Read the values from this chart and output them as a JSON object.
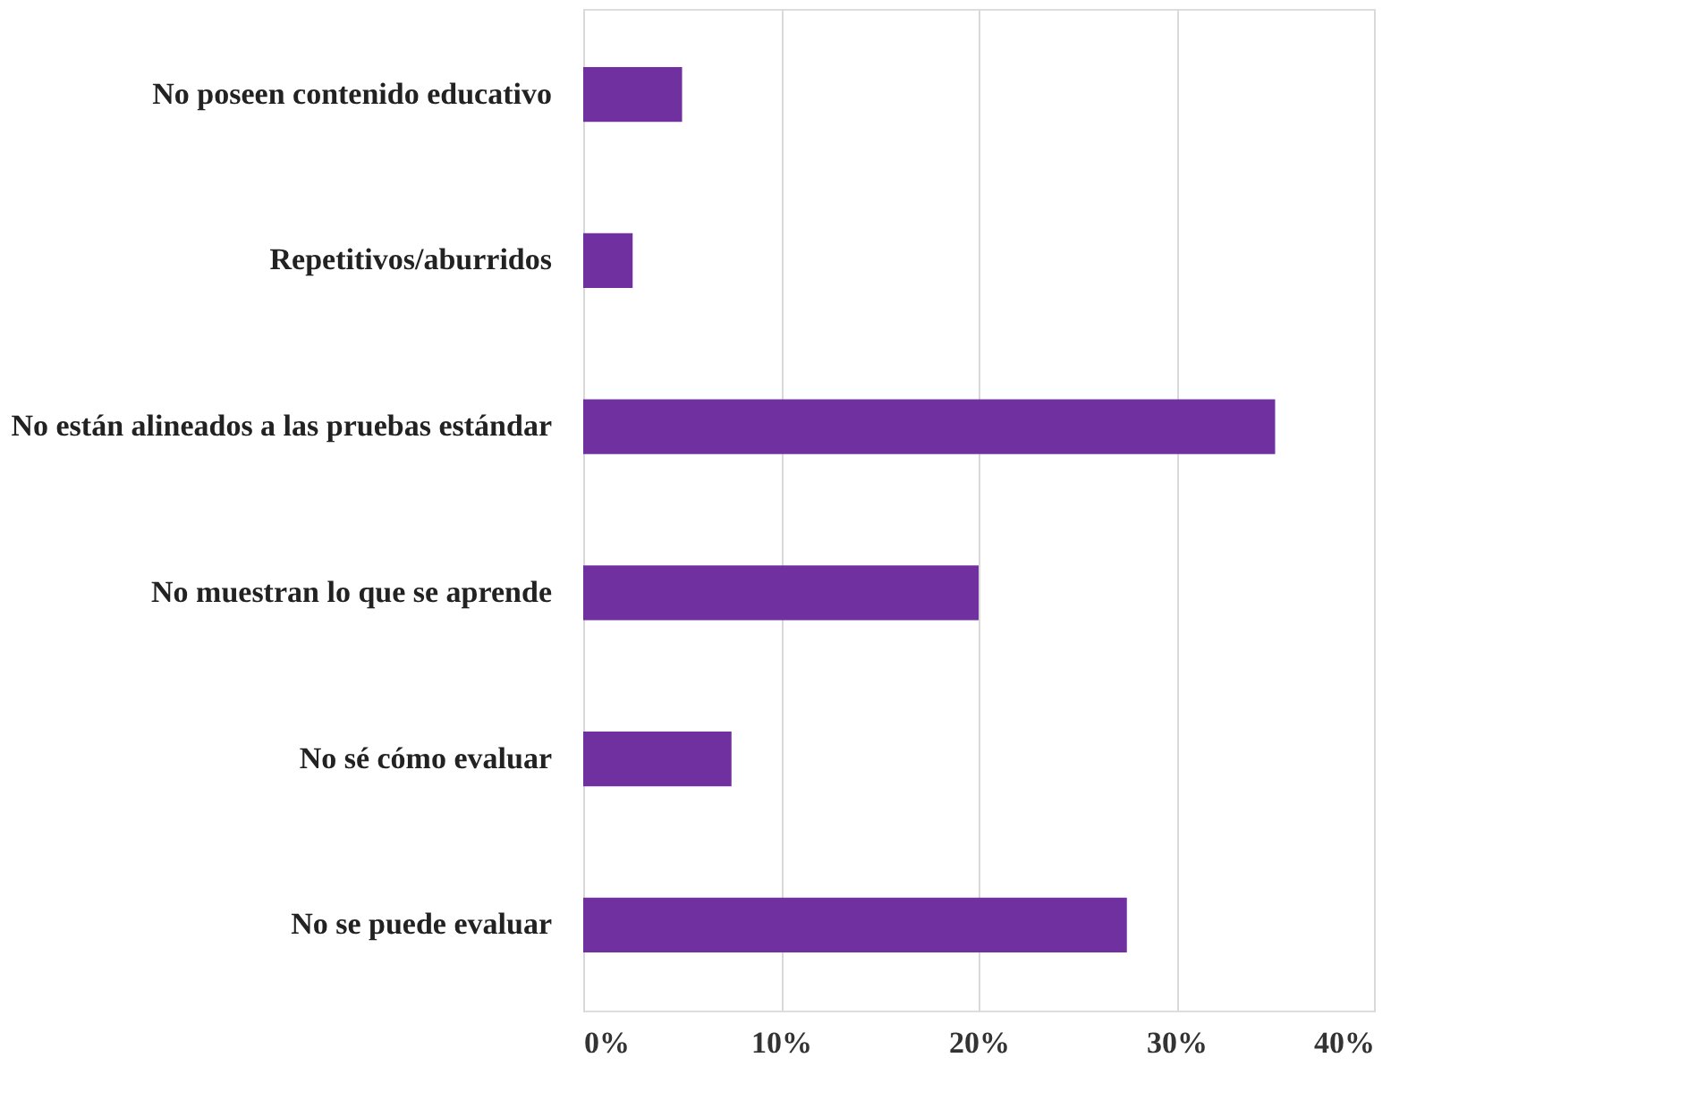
{
  "chart_data": {
    "type": "bar",
    "orientation": "horizontal",
    "categories": [
      "No poseen contenido educativo",
      "Repetitivos/aburridos",
      "No están alineados a las pruebas estándar",
      "No muestran lo que se aprende",
      "No sé cómo evaluar ",
      "No se puede evaluar"
    ],
    "values": [
      5,
      2.5,
      35,
      20,
      7.5,
      27.5
    ],
    "color": "#7030a0",
    "xlim": [
      0,
      40
    ],
    "xticks": [
      {
        "value": 0,
        "label": "0%"
      },
      {
        "value": 10,
        "label": "10%"
      },
      {
        "value": 20,
        "label": "20%"
      },
      {
        "value": 30,
        "label": "30%"
      },
      {
        "value": 40,
        "label": "40%"
      }
    ],
    "grid": "x"
  }
}
